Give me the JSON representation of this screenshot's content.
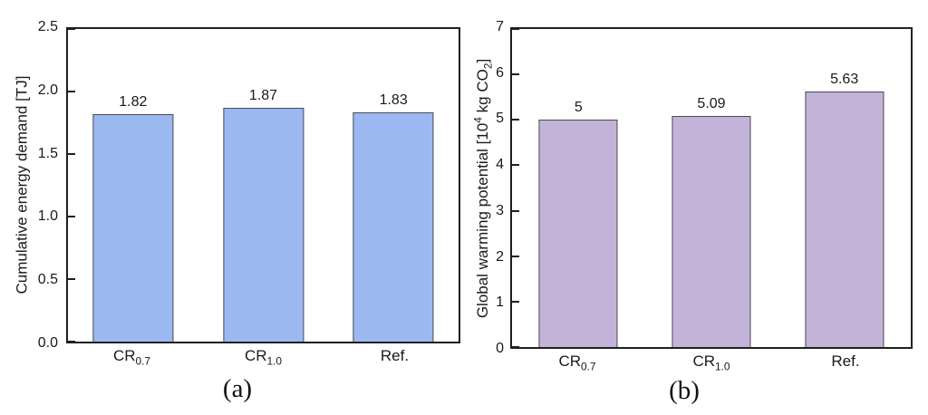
{
  "chart_data": [
    {
      "type": "bar",
      "panel": "(a)",
      "ylabel": "Cumulative energy demand [TJ]",
      "ylabel_segments": [
        {
          "t": "Cumulative energy demand [TJ]"
        }
      ],
      "categories": [
        {
          "t": "CR",
          "sub": "0.7"
        },
        {
          "t": "CR",
          "sub": "1.0"
        },
        {
          "t": "Ref.",
          "sub": ""
        }
      ],
      "values": [
        1.82,
        1.87,
        1.83
      ],
      "value_labels": [
        "1.82",
        "1.87",
        "1.83"
      ],
      "yticks": [
        "2.5",
        "2.0",
        "1.5",
        "1.0",
        "0.5",
        "0.0"
      ],
      "ylim": [
        0,
        2.5
      ],
      "xlabel": "",
      "grid": false,
      "legend": false,
      "bar_color": "#9cb8f0",
      "bar_border": "#4a4a55",
      "bar_width_pct": 20.7
    },
    {
      "type": "bar",
      "panel": "(b)",
      "ylabel": "Global warming potential [10^4 kg CO2]",
      "ylabel_segments": [
        {
          "t": "Global warming potential [10"
        },
        {
          "t": "4",
          "sup": true
        },
        {
          "t": " kg CO"
        },
        {
          "t": "2",
          "sub": true
        },
        {
          "t": "]"
        }
      ],
      "categories": [
        {
          "t": "CR",
          "sub": "0.7"
        },
        {
          "t": "CR",
          "sub": "1.0"
        },
        {
          "t": "Ref.",
          "sub": ""
        }
      ],
      "values": [
        5,
        5.09,
        5.63
      ],
      "value_labels": [
        "5",
        "5.09",
        "5.63"
      ],
      "yticks": [
        "7",
        "6",
        "5",
        "4",
        "3",
        "2",
        "1",
        "0"
      ],
      "ylim": [
        0,
        7
      ],
      "xlabel": "",
      "grid": false,
      "legend": false,
      "bar_color": "#c4b3d8",
      "bar_border": "#4a4a55",
      "bar_width_pct": 19.8
    }
  ]
}
